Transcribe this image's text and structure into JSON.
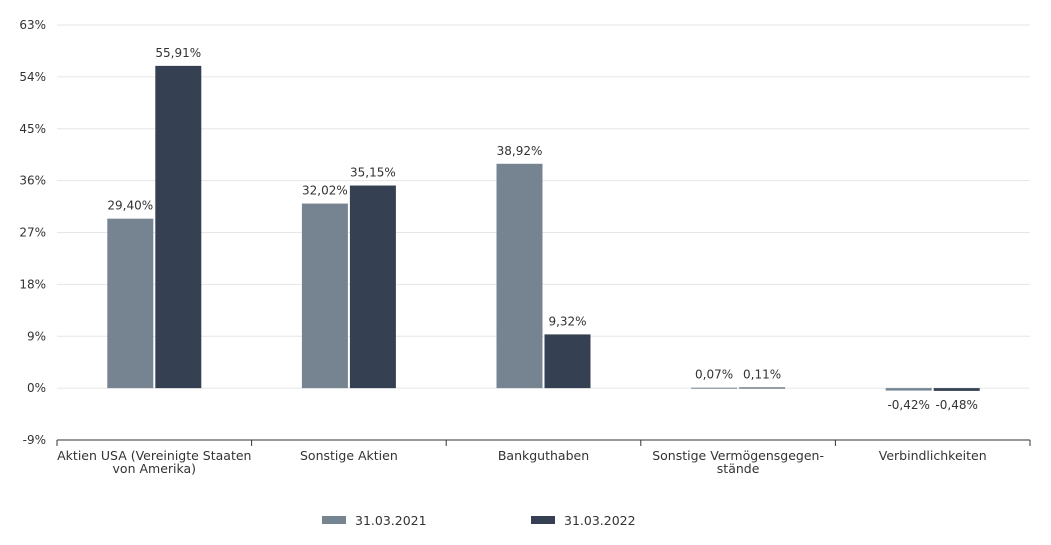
{
  "chart_data": {
    "type": "bar",
    "categories": [
      [
        "Aktien USA (Vereinigte Staaten",
        "von Amerika)"
      ],
      [
        "Sonstige Aktien"
      ],
      [
        "Bankguthaben"
      ],
      [
        "Sonstige Vermögensgegen-",
        "stände"
      ],
      [
        "Verbindlichkeiten"
      ]
    ],
    "series": [
      {
        "name": "31.03.2021",
        "values": [
          29.4,
          32.02,
          38.92,
          0.07,
          -0.42
        ],
        "labels": [
          "29,40%",
          "32,02%",
          "38,92%",
          "0,07%",
          "-0,42%"
        ],
        "color": "#768391"
      },
      {
        "name": "31.03.2022",
        "values": [
          55.91,
          35.15,
          9.32,
          0.11,
          -0.48
        ],
        "labels": [
          "55,91%",
          "35,15%",
          "9,32%",
          "0,11%",
          "-0,48%"
        ],
        "color": "#354152"
      }
    ],
    "ylim": [
      -9,
      63
    ],
    "yticks": [
      "-9%",
      "0%",
      "9%",
      "18%",
      "27%",
      "36%",
      "45%",
      "54%",
      "63%"
    ],
    "ytick_values": [
      -9,
      0,
      9,
      18,
      27,
      36,
      45,
      54,
      63
    ],
    "grid": true,
    "legend_position": "bottom"
  }
}
